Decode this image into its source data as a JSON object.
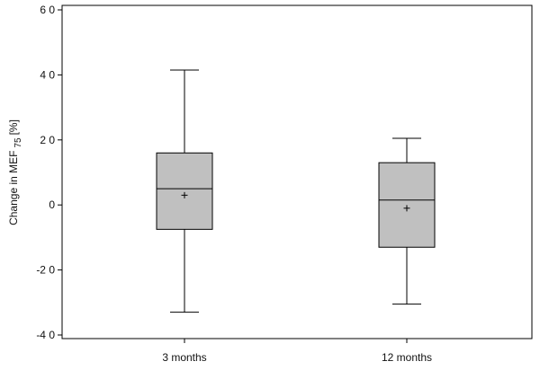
{
  "chart_data": {
    "type": "box",
    "ylabel": "Change in MEF",
    "ylabel_subscript": "75",
    "ylabel_unit": "[%]",
    "ylim": [
      -42,
      61
    ],
    "yticks": [
      60,
      40,
      20,
      0,
      -20,
      -40
    ],
    "ytick_labels": [
      "6 0",
      "4 0",
      "2 0",
      "0",
      "-2 0",
      "-4 0"
    ],
    "categories": [
      "3 months",
      "12 months"
    ],
    "boxes": [
      {
        "category": "3 months",
        "whisker_low": -33,
        "q1": -7.5,
        "median": 5,
        "q3": 16,
        "whisker_high": 41.5,
        "mean": 3
      },
      {
        "category": "12 months",
        "whisker_low": -30.5,
        "q1": -13,
        "median": 1.5,
        "q3": 13,
        "whisker_high": 20.5,
        "mean": -1
      }
    ],
    "box_fill": "#c0c0c0",
    "line_color": "#000000",
    "grid": false
  }
}
